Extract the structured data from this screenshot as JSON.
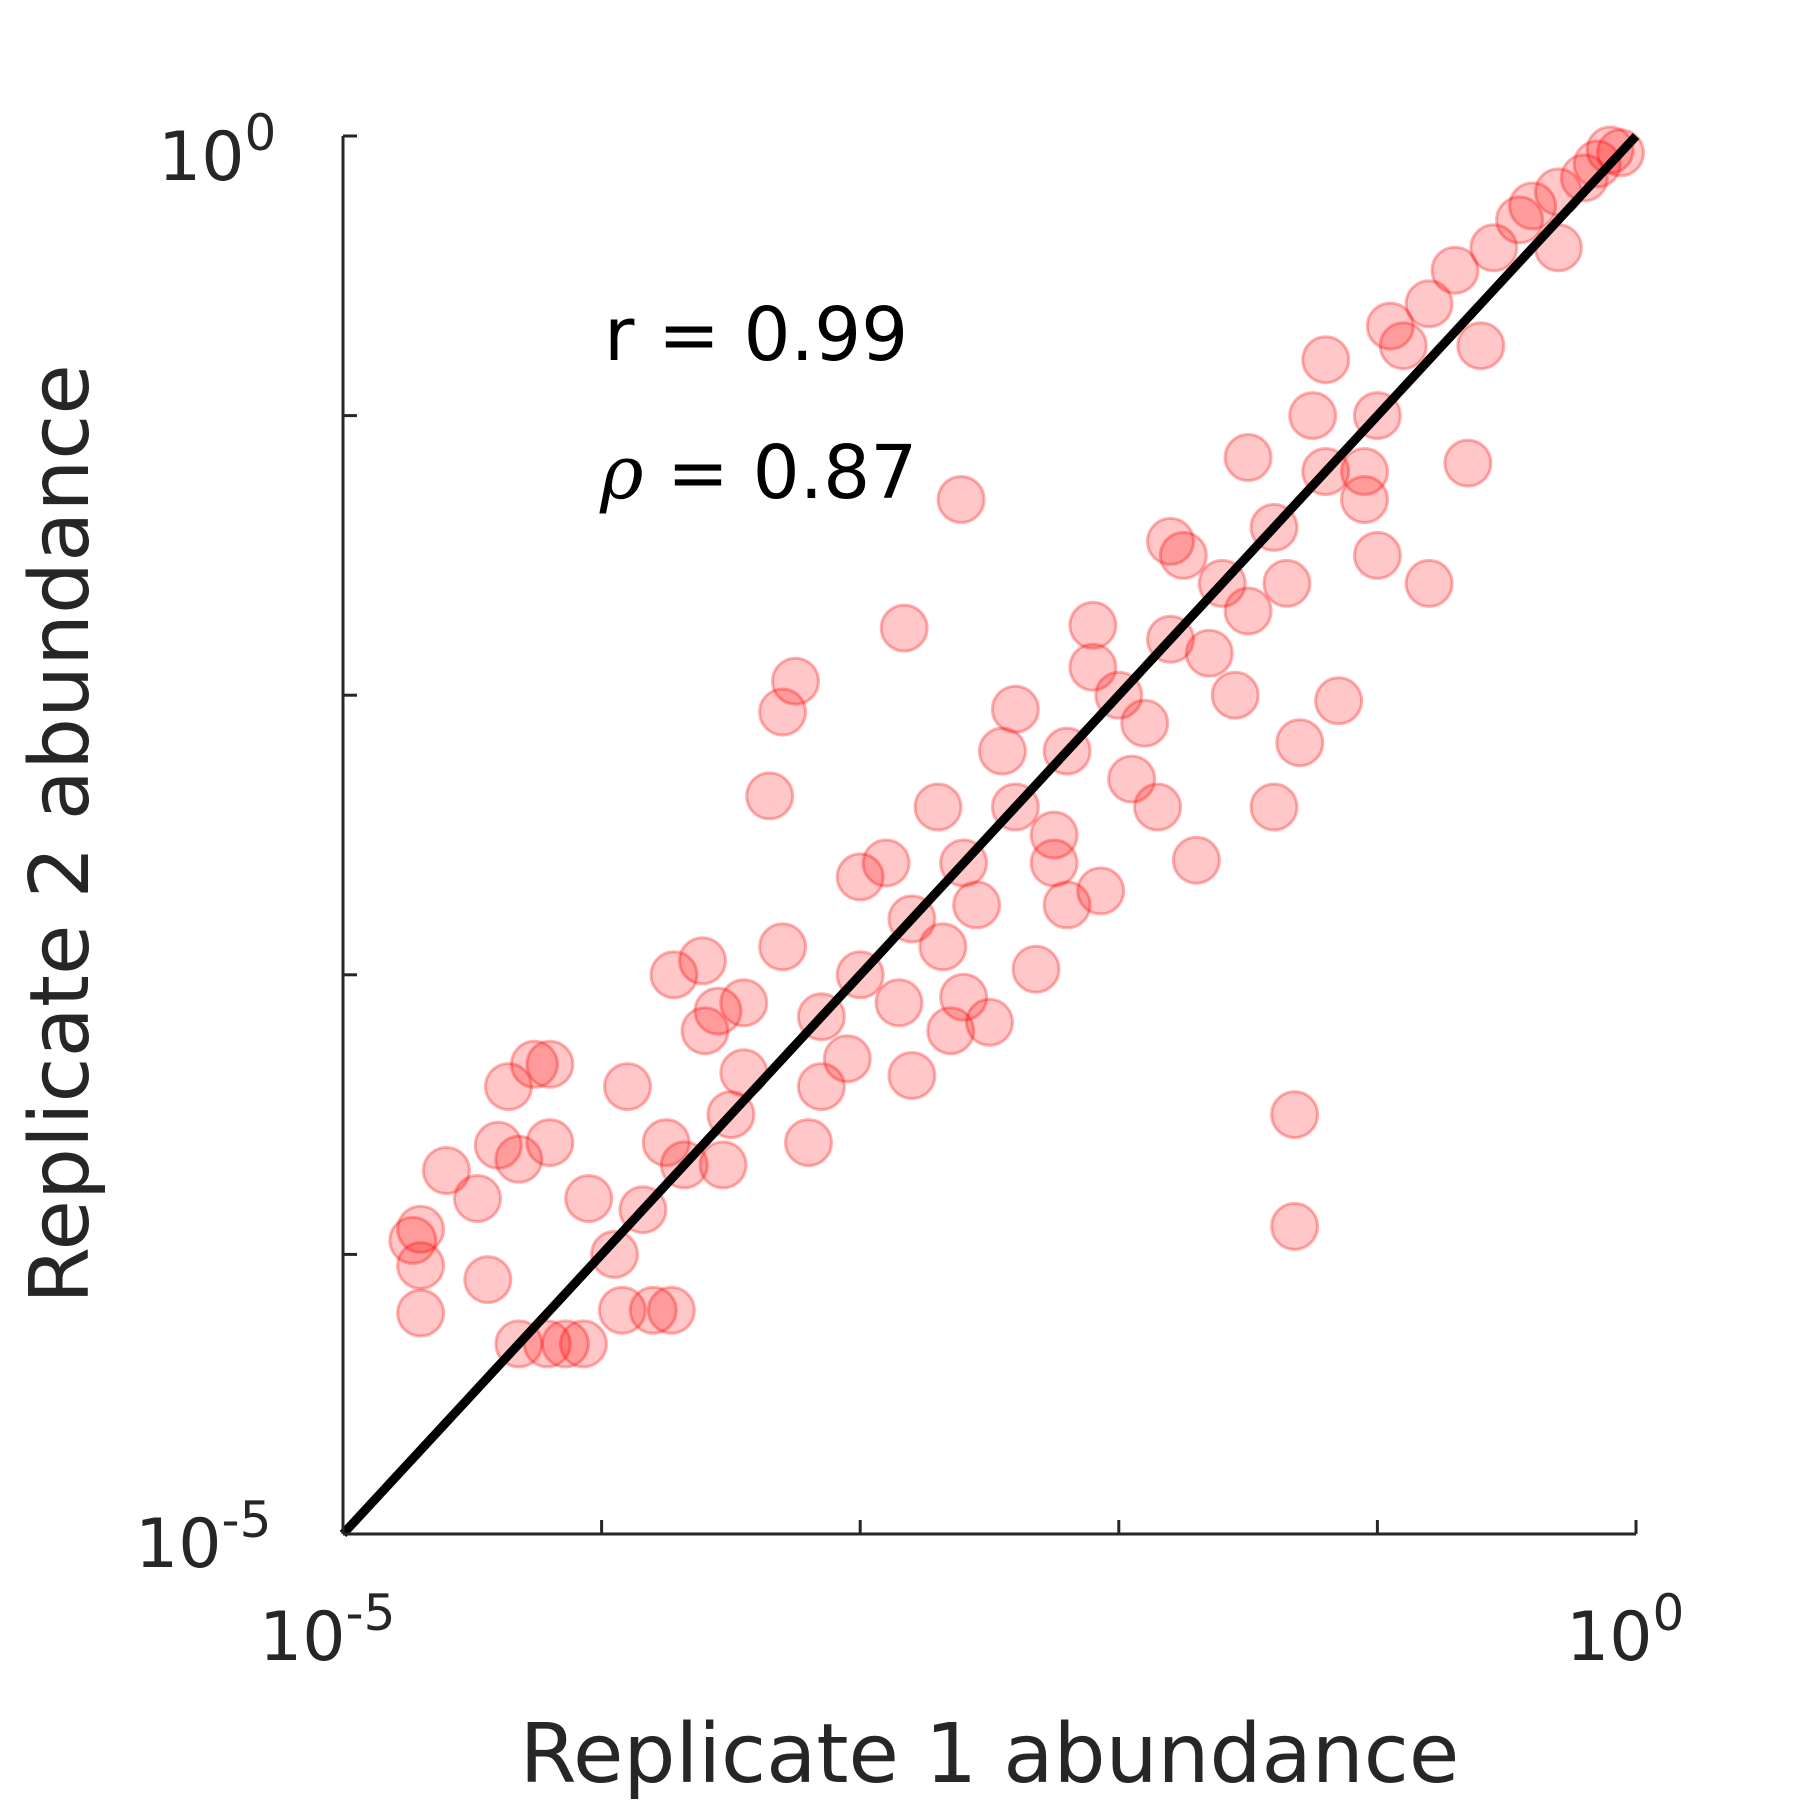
{
  "chart_data": {
    "type": "scatter",
    "xscale": "log",
    "yscale": "log",
    "xlim": [
      1e-05,
      1
    ],
    "ylim": [
      1e-05,
      1
    ],
    "xlabel": "Replicate 1 abundance",
    "ylabel": "Replicate 2 abundance",
    "x_tick_labels": [
      {
        "base": "10",
        "exp": "-5"
      },
      {
        "base": "10",
        "exp": "0"
      }
    ],
    "y_tick_labels": [
      {
        "base": "10",
        "exp": "-5"
      },
      {
        "base": "10",
        "exp": "0"
      }
    ],
    "minor_tick_exponents": [
      -4,
      -3,
      -2,
      -1
    ],
    "annotations": [
      {
        "text": "r = 0.99"
      },
      {
        "symbol": "ρ",
        "text": " = 0.87"
      }
    ],
    "reference_line": {
      "label": "",
      "from": [
        1e-05,
        1e-05
      ],
      "to": [
        1,
        1
      ],
      "color": "#000000"
    },
    "marker_color": "#ff0000",
    "marker_opacity": 0.22,
    "grid": false,
    "series": [
      {
        "points": [
          [
            1.995e-05,
            6.166e-05
          ],
          [
            1.995e-05,
            9.12e-05
          ],
          [
            1.995e-05,
            0.000123
          ],
          [
            1.862e-05,
            0.0001122
          ],
          [
            4.786e-05,
            4.786e-05
          ],
          [
            6.166e-05,
            4.786e-05
          ],
          [
            7.244e-05,
            4.786e-05
          ],
          [
            8.511e-05,
            4.786e-05
          ],
          [
            3.631e-05,
            8.128e-05
          ],
          [
            3.311e-05,
            0.0001585
          ],
          [
            3.981e-05,
            0.0002455
          ],
          [
            4.786e-05,
            0.0002188
          ],
          [
            4.365e-05,
            0.0003981
          ],
          [
            5.495e-05,
            0.0004786
          ],
          [
            6.31e-05,
            0.0004786
          ],
          [
            0.0001202,
            6.31e-05
          ],
          [
            0.0001585,
            6.31e-05
          ],
          [
            0.0001862,
            6.31e-05
          ],
          [
            0.0001445,
            0.0001445
          ],
          [
            0.0002089,
            0.0002089
          ],
          [
            0.0003162,
            0.0003162
          ],
          [
            0.0002455,
            0.001122
          ],
          [
            0.0001905,
            0.001
          ],
          [
            0.0002818,
            0.0007413
          ],
          [
            0.0003548,
            0.0007943
          ],
          [
            0.0004467,
            0.004365
          ],
          [
            0.0005012,
            0.00871
          ],
          [
            0.0005623,
            0.01122
          ],
          [
            0.001479,
            0.01738
          ],
          [
            0.002455,
            0.05012
          ],
          [
            0.0007079,
            0.0007079
          ],
          [
            0.001,
            0.001
          ],
          [
            0.001585,
            0.001585
          ],
          [
            0.002512,
            0.002512
          ],
          [
            0.003981,
            0.003981
          ],
          [
            0.00631,
            0.00631
          ],
          [
            0.01,
            0.01
          ],
          [
            0.01585,
            0.01585
          ],
          [
            0.02512,
            0.02512
          ],
          [
            0.03981,
            0.03981
          ],
          [
            0.0631,
            0.0631
          ],
          [
            0.1,
            0.1
          ],
          [
            0.001585,
            0.0004365
          ],
          [
            0.002512,
            0.0008318
          ],
          [
            0.003162,
            0.0006761
          ],
          [
            0.004786,
            0.001047
          ],
          [
            0.008511,
            0.001995
          ],
          [
            0.01995,
            0.00257
          ],
          [
            0.03981,
            0.003981
          ],
          [
            0.05012,
            0.006761
          ],
          [
            0.07079,
            0.00955
          ],
          [
            0.1585,
            0.02512
          ],
          [
            0.2239,
            0.06761
          ],
          [
            0.1122,
            0.2089
          ],
          [
            0.1995,
            0.3311
          ],
          [
            0.2818,
            0.3981
          ],
          [
            0.3981,
            0.5623
          ],
          [
            0.5012,
            0.631
          ],
          [
            0.631,
            0.7079
          ],
          [
            0.7079,
            0.7943
          ],
          [
            0.7943,
            0.8913
          ],
          [
            0.871,
            0.871
          ],
          [
            0.04786,
            0.0003162
          ],
          [
            0.04786,
            0.0001259
          ],
          [
            0.0002951,
            0.0002089
          ],
          [
            0.0008913,
            0.0005012
          ],
          [
            0.001259,
            0.002512
          ],
          [
            0.002089,
            0.001259
          ],
          [
            0.003548,
            0.00631
          ],
          [
            0.005623,
            0.003162
          ],
          [
            0.007943,
            0.01259
          ],
          [
            0.01259,
            0.007943
          ],
          [
            0.01778,
            0.03162
          ],
          [
            0.03162,
            0.02
          ],
          [
            0.05623,
            0.1
          ],
          [
            0.08913,
            0.05012
          ],
          [
            0.1585,
            0.2512
          ],
          [
            0.2512,
            0.1778
          ],
          [
            0.3548,
            0.5012
          ],
          [
            0.5012,
            0.3981
          ],
          [
            6.31e-05,
            0.0002512
          ],
          [
            8.913e-05,
            0.0001585
          ],
          [
            0.0001259,
            0.0003981
          ],
          [
            0.0001778,
            0.0002512
          ],
          [
            0.0002512,
            0.000631
          ],
          [
            0.0003548,
            0.0004467
          ],
          [
            0.0005012,
            0.001259
          ],
          [
            0.0007079,
            0.0003981
          ],
          [
            0.001,
            0.002239
          ],
          [
            0.001413,
            0.0007943
          ],
          [
            0.002,
            0.003981
          ],
          [
            0.002818,
            0.001778
          ],
          [
            0.003981,
            0.008913
          ],
          [
            0.005623,
            0.002512
          ],
          [
            0.007943,
            0.01778
          ],
          [
            0.01122,
            0.005012
          ],
          [
            0.01585,
            0.03548
          ],
          [
            0.02239,
            0.01413
          ],
          [
            0.03162,
            0.07079
          ],
          [
            0.04467,
            0.02512
          ],
          [
            0.0631,
            0.1585
          ],
          [
            0.08913,
            0.0631
          ],
          [
            0.1259,
            0.1778
          ],
          [
            2.512e-05,
            0.0001995
          ],
          [
            0.0001122,
            0.0001
          ],
          [
            0.000631,
            0.0002512
          ],
          [
            0.002239,
            0.000631
          ],
          [
            0.00631,
            0.001778
          ],
          [
            0.01413,
            0.003981
          ],
          [
            0.02818,
            0.01
          ],
          [
            0.1,
            0.03162
          ]
        ]
      }
    ]
  }
}
